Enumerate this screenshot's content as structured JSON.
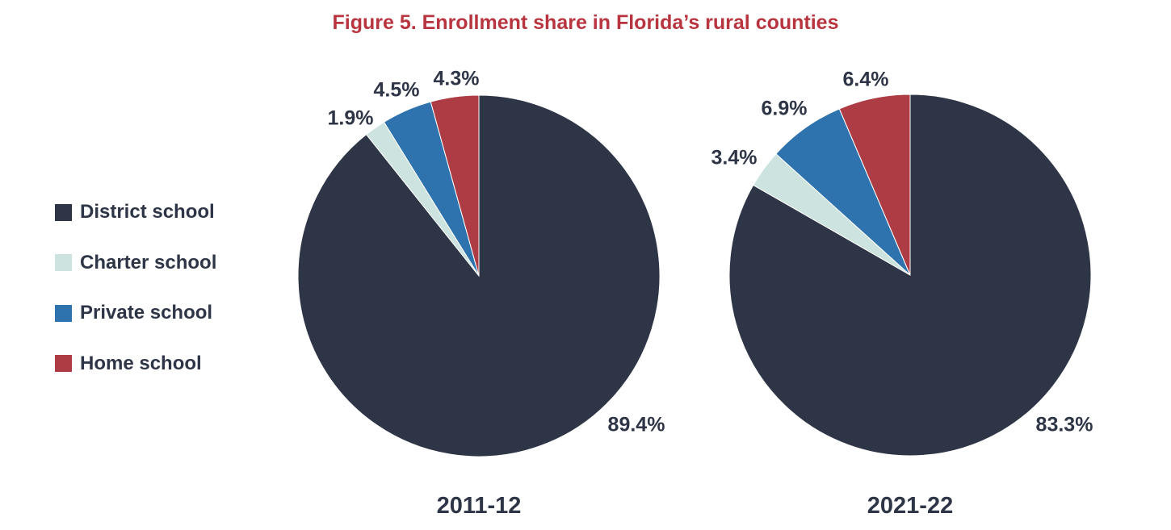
{
  "title": "Figure 5. Enrollment share in Florida’s rural counties",
  "legend": {
    "items": [
      {
        "label": "District school",
        "color": "#2e3547"
      },
      {
        "label": "Charter school",
        "color": "#cde3df"
      },
      {
        "label": "Private school",
        "color": "#2e73ad"
      },
      {
        "label": "Home school",
        "color": "#ad3c44"
      }
    ]
  },
  "chart_data": [
    {
      "type": "pie",
      "title": "2011-12",
      "legend_position": "left",
      "slices": [
        {
          "name": "District school",
          "value": 89.4,
          "label": "89.4%",
          "color": "#2e3547"
        },
        {
          "name": "Charter school",
          "value": 1.9,
          "label": "1.9%",
          "color": "#cde3df"
        },
        {
          "name": "Private school",
          "value": 4.5,
          "label": "4.5%",
          "color": "#2e73ad"
        },
        {
          "name": "Home school",
          "value": 4.3,
          "label": "4.3%",
          "color": "#ad3c44"
        }
      ]
    },
    {
      "type": "pie",
      "title": "2021-22",
      "legend_position": "left",
      "slices": [
        {
          "name": "District school",
          "value": 83.3,
          "label": "83.3%",
          "color": "#2e3547"
        },
        {
          "name": "Charter school",
          "value": 3.4,
          "label": "3.4%",
          "color": "#cde3df"
        },
        {
          "name": "Private school",
          "value": 6.9,
          "label": "6.9%",
          "color": "#2e73ad"
        },
        {
          "name": "Home school",
          "value": 6.4,
          "label": "6.4%",
          "color": "#ad3c44"
        }
      ]
    }
  ]
}
